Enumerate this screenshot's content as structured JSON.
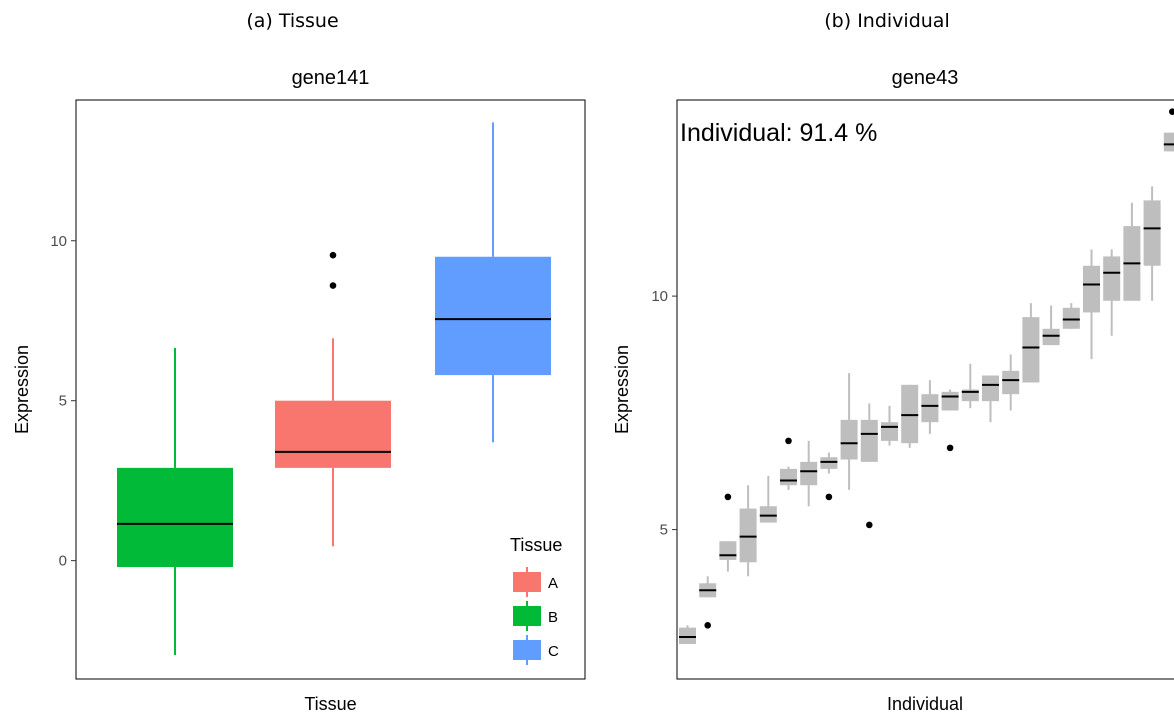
{
  "captions": {
    "a": "(a) Tissue",
    "b": "(b) Individual"
  },
  "chart_data": [
    {
      "type": "boxplot",
      "title": "gene141",
      "xlabel": "Tissue",
      "ylabel": "Expression",
      "ylim": [
        -3.7,
        14.4
      ],
      "yticks": [
        0,
        5,
        10
      ],
      "legend": {
        "title": "Tissue",
        "placement": "bottom-right"
      },
      "grid": false,
      "groups": [
        {
          "name": "B",
          "color": "#00BA38",
          "min": -2.95,
          "q1": -0.2,
          "median": 1.15,
          "q3": 2.9,
          "max": 6.65,
          "outliers": []
        },
        {
          "name": "A",
          "color": "#F8766D",
          "min": 0.45,
          "q1": 2.9,
          "median": 3.4,
          "q3": 5.0,
          "max": 6.95,
          "outliers": [
            8.6,
            9.55
          ]
        },
        {
          "name": "C",
          "color": "#619CFF",
          "min": 3.7,
          "q1": 5.8,
          "median": 7.55,
          "q3": 9.5,
          "max": 13.7,
          "outliers": []
        }
      ],
      "legend_entries": [
        {
          "label": "A",
          "color": "#F8766D"
        },
        {
          "label": "B",
          "color": "#00BA38"
        },
        {
          "label": "C",
          "color": "#619CFF"
        }
      ]
    },
    {
      "type": "boxplot",
      "title": "gene43",
      "xlabel": "Individual",
      "ylabel": "Expression",
      "ylim": [
        1.8,
        14.2
      ],
      "yticks": [
        5,
        10
      ],
      "annotation": "Individual: 91.4 %",
      "color": "#BEBEBE",
      "grid": false,
      "groups": [
        {
          "min": 2.55,
          "q1": 2.55,
          "median": 2.7,
          "q3": 2.9,
          "max": 2.95,
          "outliers": []
        },
        {
          "min": 3.55,
          "q1": 3.55,
          "median": 3.7,
          "q3": 3.85,
          "max": 4.0,
          "outliers": [
            2.95
          ]
        },
        {
          "min": 4.1,
          "q1": 4.35,
          "median": 4.45,
          "q3": 4.75,
          "max": 4.75,
          "outliers": [
            5.7
          ]
        },
        {
          "min": 4.0,
          "q1": 4.3,
          "median": 4.85,
          "q3": 5.45,
          "max": 5.95,
          "outliers": []
        },
        {
          "min": 5.15,
          "q1": 5.15,
          "median": 5.3,
          "q3": 5.5,
          "max": 6.15,
          "outliers": []
        },
        {
          "min": 5.85,
          "q1": 5.95,
          "median": 6.05,
          "q3": 6.3,
          "max": 6.35,
          "outliers": [
            6.9
          ]
        },
        {
          "min": 5.5,
          "q1": 5.95,
          "median": 6.25,
          "q3": 6.45,
          "max": 6.9,
          "outliers": []
        },
        {
          "min": 6.2,
          "q1": 6.3,
          "median": 6.45,
          "q3": 6.55,
          "max": 6.65,
          "outliers": [
            5.7
          ]
        },
        {
          "min": 5.85,
          "q1": 6.5,
          "median": 6.85,
          "q3": 7.35,
          "max": 8.35,
          "outliers": []
        },
        {
          "min": 6.45,
          "q1": 6.45,
          "median": 7.05,
          "q3": 7.35,
          "max": 7.7,
          "outliers": [
            5.1
          ]
        },
        {
          "min": 6.8,
          "q1": 6.9,
          "median": 7.2,
          "q3": 7.3,
          "max": 7.65,
          "outliers": []
        },
        {
          "min": 6.75,
          "q1": 6.85,
          "median": 7.45,
          "q3": 8.1,
          "max": 8.1,
          "outliers": []
        },
        {
          "min": 7.05,
          "q1": 7.3,
          "median": 7.65,
          "q3": 7.9,
          "max": 8.2,
          "outliers": []
        },
        {
          "min": 7.55,
          "q1": 7.55,
          "median": 7.85,
          "q3": 7.95,
          "max": 8.0,
          "outliers": [
            6.75
          ]
        },
        {
          "min": 7.6,
          "q1": 7.75,
          "median": 7.95,
          "q3": 8.0,
          "max": 8.55,
          "outliers": []
        },
        {
          "min": 7.3,
          "q1": 7.75,
          "median": 8.1,
          "q3": 8.3,
          "max": 8.3,
          "outliers": []
        },
        {
          "min": 7.55,
          "q1": 7.9,
          "median": 8.2,
          "q3": 8.4,
          "max": 8.75,
          "outliers": []
        },
        {
          "min": 8.15,
          "q1": 8.15,
          "median": 8.9,
          "q3": 9.55,
          "max": 9.85,
          "outliers": []
        },
        {
          "min": 8.95,
          "q1": 8.95,
          "median": 9.15,
          "q3": 9.3,
          "max": 9.8,
          "outliers": []
        },
        {
          "min": 9.3,
          "q1": 9.3,
          "median": 9.5,
          "q3": 9.75,
          "max": 9.85,
          "outliers": []
        },
        {
          "min": 8.65,
          "q1": 9.65,
          "median": 10.25,
          "q3": 10.65,
          "max": 11.0,
          "outliers": []
        },
        {
          "min": 9.15,
          "q1": 9.9,
          "median": 10.5,
          "q3": 10.85,
          "max": 11.0,
          "outliers": []
        },
        {
          "min": 9.9,
          "q1": 9.9,
          "median": 10.7,
          "q3": 11.5,
          "max": 12.0,
          "outliers": []
        },
        {
          "min": 9.9,
          "q1": 10.65,
          "median": 11.45,
          "q3": 12.05,
          "max": 12.35,
          "outliers": []
        },
        {
          "min": 13.1,
          "q1": 13.1,
          "median": 13.25,
          "q3": 13.5,
          "max": 13.5,
          "outliers": [
            13.95
          ]
        }
      ]
    }
  ]
}
